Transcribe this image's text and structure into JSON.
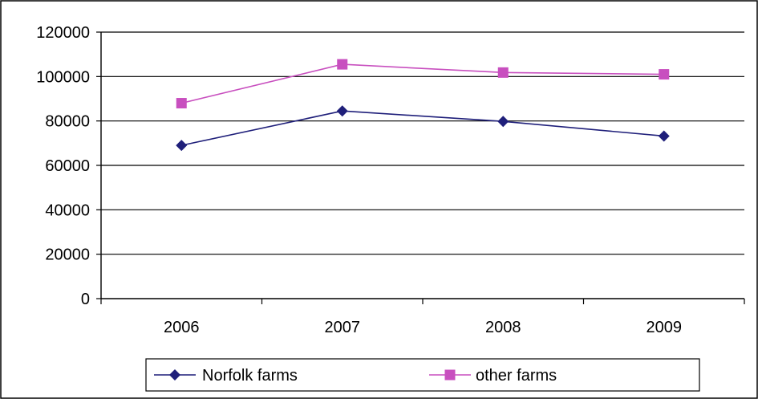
{
  "chart_data": {
    "type": "line",
    "title": "",
    "xlabel": "",
    "ylabel": "",
    "categories": [
      "2006",
      "2007",
      "2008",
      "2009"
    ],
    "y_ticks": [
      "0",
      "20000",
      "40000",
      "60000",
      "80000",
      "100000",
      "120000"
    ],
    "ylim": [
      0,
      120000
    ],
    "grid": true,
    "legend_position": "bottom",
    "series": [
      {
        "name": "Norfolk farms",
        "values": [
          69000,
          84500,
          79800,
          73200
        ],
        "color": "#1f1f7a",
        "marker": "diamond"
      },
      {
        "name": "other farms",
        "values": [
          88000,
          105500,
          101800,
          101000
        ],
        "color": "#c84fbf",
        "marker": "square"
      }
    ]
  }
}
